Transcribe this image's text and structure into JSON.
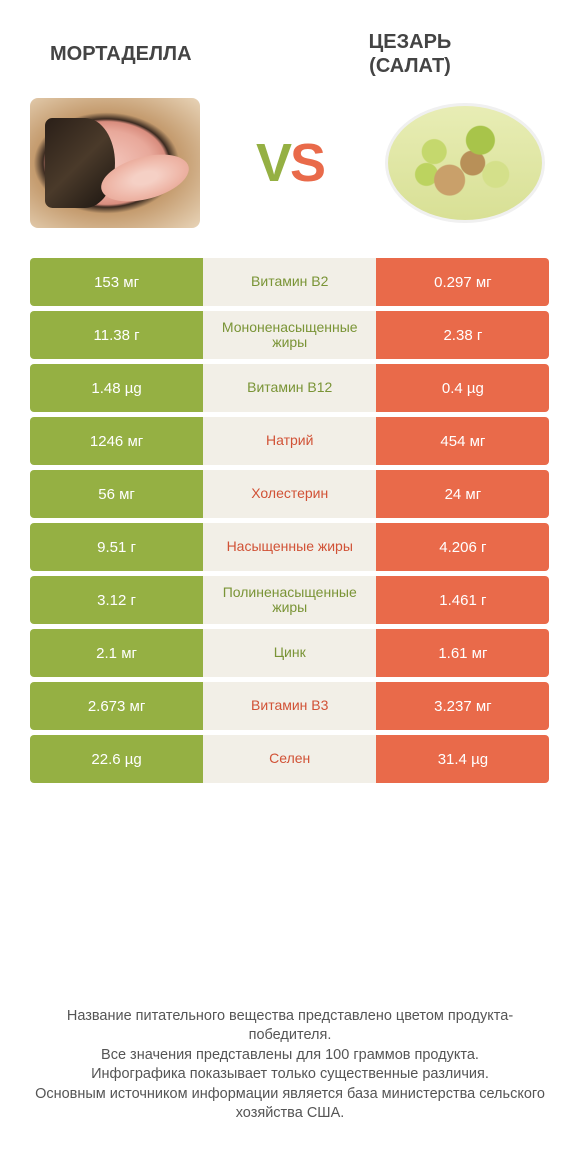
{
  "colors": {
    "green": "#95b043",
    "orange": "#e96a4a",
    "mid_bg_green_text": "#7a9436",
    "mid_bg_orange_text": "#d15236",
    "mid_bg": "#f2efe7",
    "vs_v": "#95b043",
    "vs_s": "#e96a4a"
  },
  "header": {
    "left_title": "МОРТАДЕЛЛА",
    "right_title_line1": "ЦЕЗАРЬ",
    "right_title_line2": "(САЛАТ)"
  },
  "vs": {
    "v": "V",
    "s": "S"
  },
  "rows": [
    {
      "left": "153 мг",
      "mid": "Витамин B2",
      "right": "0.297 мг",
      "winner": "left"
    },
    {
      "left": "11.38 г",
      "mid": "Мононенасыщенные жиры",
      "right": "2.38 г",
      "winner": "left"
    },
    {
      "left": "1.48 µg",
      "mid": "Витамин B12",
      "right": "0.4 µg",
      "winner": "left"
    },
    {
      "left": "1246 мг",
      "mid": "Натрий",
      "right": "454 мг",
      "winner": "right"
    },
    {
      "left": "56 мг",
      "mid": "Холестерин",
      "right": "24 мг",
      "winner": "right"
    },
    {
      "left": "9.51 г",
      "mid": "Насыщенные жиры",
      "right": "4.206 г",
      "winner": "right"
    },
    {
      "left": "3.12 г",
      "mid": "Полиненасыщенные жиры",
      "right": "1.461 г",
      "winner": "left"
    },
    {
      "left": "2.1 мг",
      "mid": "Цинк",
      "right": "1.61 мг",
      "winner": "left"
    },
    {
      "left": "2.673 мг",
      "mid": "Витамин B3",
      "right": "3.237 мг",
      "winner": "right"
    },
    {
      "left": "22.6 µg",
      "mid": "Селен",
      "right": "31.4 µg",
      "winner": "right"
    }
  ],
  "footer": {
    "line1": "Название питательного вещества представлено цветом продукта-победителя.",
    "line2": "Все значения представлены для 100 граммов продукта.",
    "line3": "Инфографика показывает только существенные различия.",
    "line4": "Основным источником информации является база министерства сельского хозяйства США."
  }
}
